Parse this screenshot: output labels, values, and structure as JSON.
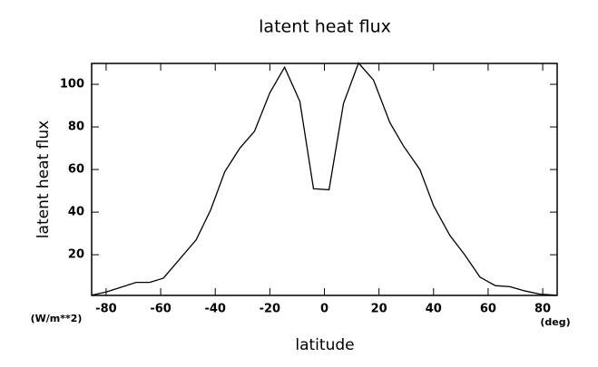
{
  "chart_data": {
    "type": "line",
    "title": "latent heat flux",
    "x_label": "latitude",
    "y_label": "latent heat flux",
    "x_unit": "(deg)",
    "y_unit": "(W/m**2)",
    "x": [
      -85.3,
      -80,
      -69,
      -64,
      -59,
      -53,
      -47,
      -41.7,
      -36.5,
      -31,
      -25.6,
      -20,
      -14.6,
      -9,
      -4,
      1.7,
      7,
      12.5,
      18,
      24,
      29,
      35,
      40,
      46,
      51.4,
      57,
      62.6,
      68,
      73.5,
      79,
      85.3
    ],
    "series": [
      {
        "name": "latent heat flux",
        "color": "#000000",
        "values": [
          1,
          2.5,
          7,
          7,
          9,
          18,
          27,
          41,
          59,
          70,
          78,
          96,
          108,
          92,
          51,
          50.5,
          91,
          110,
          102,
          82,
          71,
          60,
          43,
          29,
          20,
          9.5,
          5.5,
          5,
          3,
          1.5,
          1
        ]
      }
    ],
    "xlim": [
      -85.3,
      85.3
    ],
    "ylim": [
      0.9,
      109.8
    ],
    "xticks": [
      -80,
      -60,
      -40,
      -20,
      0,
      20,
      40,
      60,
      80
    ],
    "yticks": [
      20,
      40,
      60,
      80,
      100
    ]
  }
}
